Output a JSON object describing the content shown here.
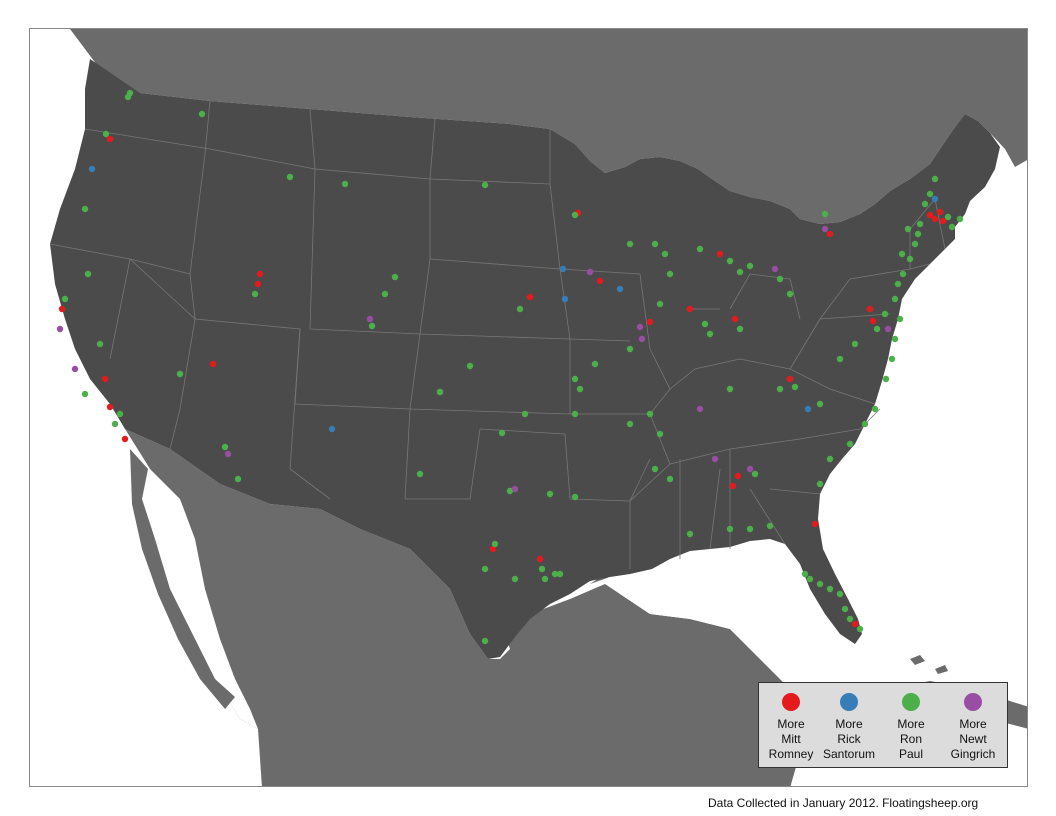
{
  "colors": {
    "background": "#ffffff",
    "land_other": "#6b6b6b",
    "land_us": "#4b4b4b",
    "state_border": "#7a7a7a",
    "romney": "#e41a1c",
    "santorum": "#377eb8",
    "paul": "#4daf4a",
    "gingrich": "#984ea3"
  },
  "legend": {
    "items": [
      {
        "key": "romney",
        "line1": "More",
        "line2": "Mitt",
        "line3": "Romney",
        "color": "#e41a1c"
      },
      {
        "key": "santorum",
        "line1": "More",
        "line2": "Rick",
        "line3": "Santorum",
        "color": "#377eb8"
      },
      {
        "key": "paul",
        "line1": "More",
        "line2": "Ron",
        "line3": "Paul",
        "color": "#4daf4a"
      },
      {
        "key": "gingrich",
        "line1": "More",
        "line2": "Newt",
        "line3": "Gingrich",
        "color": "#984ea3"
      }
    ]
  },
  "footer": {
    "credit": "Data Collected in January 2012. Floatingsheep.org"
  }
}
